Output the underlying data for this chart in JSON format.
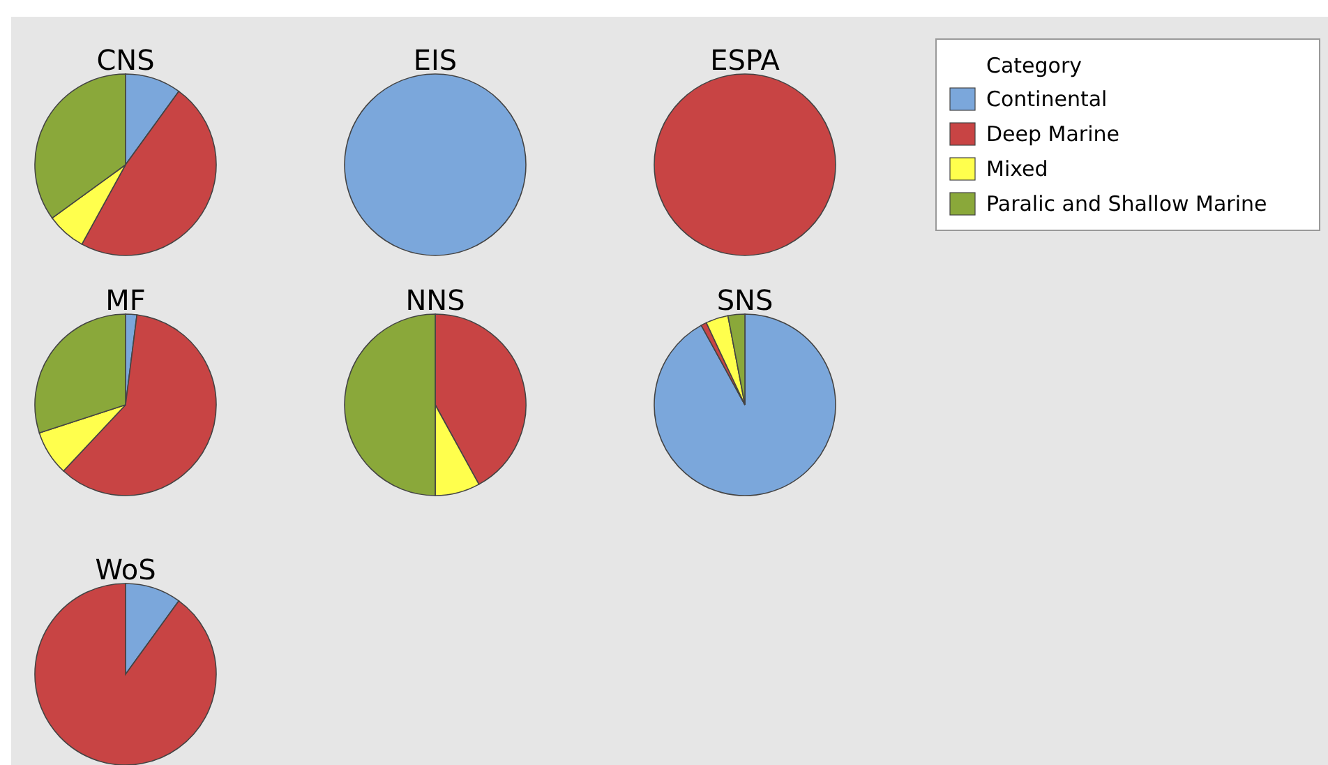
{
  "chart_data": {
    "type": "pie",
    "legend_title": "Category",
    "legend": "top right",
    "categories": [
      "Continental",
      "Deep Marine",
      "Mixed",
      "Paralic and Shallow Marine"
    ],
    "colors": [
      "#7ba7db",
      "#c84444",
      "#ffff4d",
      "#8aa83a"
    ],
    "series": [
      {
        "name": "CNS",
        "values": [
          10,
          48,
          7,
          35
        ]
      },
      {
        "name": "EIS",
        "values": [
          100,
          0,
          0,
          0
        ]
      },
      {
        "name": "ESPA",
        "values": [
          0,
          100,
          0,
          0
        ]
      },
      {
        "name": "MF",
        "values": [
          2,
          60,
          8,
          30
        ]
      },
      {
        "name": "NNS",
        "values": [
          0,
          42,
          8,
          50
        ]
      },
      {
        "name": "SNS",
        "values": [
          92,
          1,
          4,
          3
        ]
      },
      {
        "name": "WoS",
        "values": [
          10,
          90,
          0,
          0
        ]
      }
    ]
  }
}
